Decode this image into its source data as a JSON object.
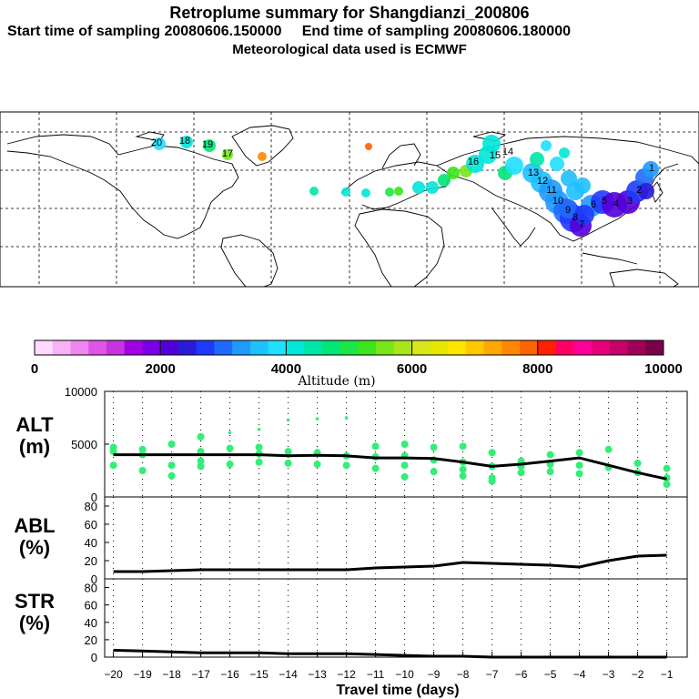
{
  "title": "Retroplume summary for Shangdianzi_200806",
  "subtitle_start": "Start time of sampling 20080606.150000",
  "subtitle_end": "End time of sampling 20080606.180000",
  "subtitle_met": "Meteorological data used is ECMWF",
  "colorbar": {
    "label": "Altitude (m)",
    "ticks": [
      "0",
      "2000",
      "4000",
      "6000",
      "8000",
      "10000"
    ],
    "colors": [
      "#ffd9ff",
      "#f7b3f7",
      "#ee88ee",
      "#e055e8",
      "#c833e0",
      "#a200e6",
      "#7a00e6",
      "#5200d9",
      "#2a1ad9",
      "#1f3aff",
      "#1f6aff",
      "#1f9aff",
      "#1fc0ff",
      "#1fe0ff",
      "#00e6d9",
      "#00e6a8",
      "#00e678",
      "#1ae64a",
      "#3ae61a",
      "#78e61a",
      "#a8e61a",
      "#d9e61a",
      "#e6e600",
      "#ffe600",
      "#ffc800",
      "#ffa800",
      "#ff8800",
      "#ff6200",
      "#ff2000",
      "#ff0066",
      "#ff0099",
      "#e6007a",
      "#c8006a",
      "#a0005a",
      "#7a004a"
    ]
  },
  "map": {
    "labels": [
      "20",
      "18",
      "19",
      "17",
      "16",
      "15",
      "14",
      "13",
      "12",
      "11",
      "10",
      "9",
      "8",
      "7",
      "6",
      "5",
      "4",
      "3",
      "2",
      "1"
    ],
    "label_color": "#000000"
  },
  "chart_data": [
    {
      "type": "scatter",
      "name": "ALT",
      "ylabel": "ALT\n(m)",
      "ylabel_lines": [
        "ALT",
        "(m)"
      ],
      "ylim": [
        0,
        10000
      ],
      "yticks": [
        "10000",
        "5000",
        "0"
      ],
      "x": [
        -20,
        -19,
        -18,
        -17,
        -16,
        -15,
        -14,
        -13,
        -12,
        -11,
        -10,
        -9,
        -8,
        -7,
        -6,
        -5,
        -4,
        -3,
        -2,
        -1
      ],
      "median_line": [
        4000,
        4000,
        4000,
        4000,
        4000,
        4000,
        3900,
        3950,
        3900,
        3700,
        3700,
        3650,
        3300,
        2900,
        3100,
        3400,
        3700,
        3000,
        2300,
        1700
      ],
      "point_color": "#33ee77",
      "points": [
        [
          -20,
          4300
        ],
        [
          -20,
          3000
        ],
        [
          -20,
          4700
        ],
        [
          -19,
          4500
        ],
        [
          -19,
          2500
        ],
        [
          -19,
          4000
        ],
        [
          -18,
          5000
        ],
        [
          -18,
          3000
        ],
        [
          -18,
          2000
        ],
        [
          -17,
          5700
        ],
        [
          -17,
          3400
        ],
        [
          -17,
          4300
        ],
        [
          -17,
          2900
        ],
        [
          -16,
          6100
        ],
        [
          -16,
          4600
        ],
        [
          -16,
          3100
        ],
        [
          -15,
          6400
        ],
        [
          -15,
          4700
        ],
        [
          -15,
          3300
        ],
        [
          -15,
          4100
        ],
        [
          -14,
          7300
        ],
        [
          -14,
          4300
        ],
        [
          -14,
          3200
        ],
        [
          -13,
          7400
        ],
        [
          -13,
          4200
        ],
        [
          -13,
          3100
        ],
        [
          -12,
          7500
        ],
        [
          -12,
          3900
        ],
        [
          -12,
          3000
        ],
        [
          -11,
          4800
        ],
        [
          -11,
          3800
        ],
        [
          -11,
          2700
        ],
        [
          -10,
          5000
        ],
        [
          -10,
          3900
        ],
        [
          -10,
          3000
        ],
        [
          -10,
          1900
        ],
        [
          -9,
          4700
        ],
        [
          -9,
          3500
        ],
        [
          -9,
          2400
        ],
        [
          -8,
          4800
        ],
        [
          -8,
          3300
        ],
        [
          -8,
          2600
        ],
        [
          -8,
          2000
        ],
        [
          -7,
          4200
        ],
        [
          -7,
          2900
        ],
        [
          -7,
          1800
        ],
        [
          -7,
          1500
        ],
        [
          -6,
          3400
        ],
        [
          -6,
          2900
        ],
        [
          -6,
          2300
        ],
        [
          -5,
          4000
        ],
        [
          -5,
          3100
        ],
        [
          -5,
          2400
        ],
        [
          -4,
          4200
        ],
        [
          -4,
          3000
        ],
        [
          -4,
          2200
        ],
        [
          -3,
          4500
        ],
        [
          -3,
          2800
        ],
        [
          -2,
          3200
        ],
        [
          -2,
          2300
        ],
        [
          -1,
          2700
        ],
        [
          -1,
          1800
        ],
        [
          -1,
          1200
        ]
      ]
    },
    {
      "type": "line",
      "name": "ABL",
      "ylabel_lines": [
        "ABL",
        "(%)"
      ],
      "ylim": [
        0,
        90
      ],
      "yticks": [
        "80",
        "60",
        "40",
        "20",
        "0"
      ],
      "x": [
        -20,
        -19,
        -18,
        -17,
        -16,
        -15,
        -14,
        -13,
        -12,
        -11,
        -10,
        -9,
        -8,
        -7,
        -6,
        -5,
        -4,
        -3,
        -2,
        -1
      ],
      "values": [
        8,
        8,
        9,
        10,
        10,
        10,
        10,
        10,
        10,
        12,
        13,
        14,
        18,
        17,
        16,
        15,
        13,
        20,
        25,
        26
      ]
    },
    {
      "type": "line",
      "name": "STR",
      "ylabel_lines": [
        "STR",
        "(%)"
      ],
      "ylim": [
        0,
        90
      ],
      "yticks": [
        "80",
        "60",
        "40",
        "20",
        "0"
      ],
      "x": [
        -20,
        -19,
        -18,
        -17,
        -16,
        -15,
        -14,
        -13,
        -12,
        -11,
        -10,
        -9,
        -8,
        -7,
        -6,
        -5,
        -4,
        -3,
        -2,
        -1
      ],
      "values": [
        8,
        7,
        6,
        5,
        5,
        5,
        4,
        4,
        4,
        3,
        2,
        1,
        1,
        0,
        0,
        0,
        0,
        0,
        0,
        0
      ]
    }
  ],
  "xaxis": {
    "label": "Travel time (days)",
    "ticks": [
      "−20",
      "−19",
      "−18",
      "−17",
      "−16",
      "−15",
      "−14",
      "−13",
      "−12",
      "−11",
      "−10",
      "−9",
      "−8",
      "−7",
      "−6",
      "−5",
      "−4",
      "−3",
      "−2",
      "−1"
    ]
  }
}
